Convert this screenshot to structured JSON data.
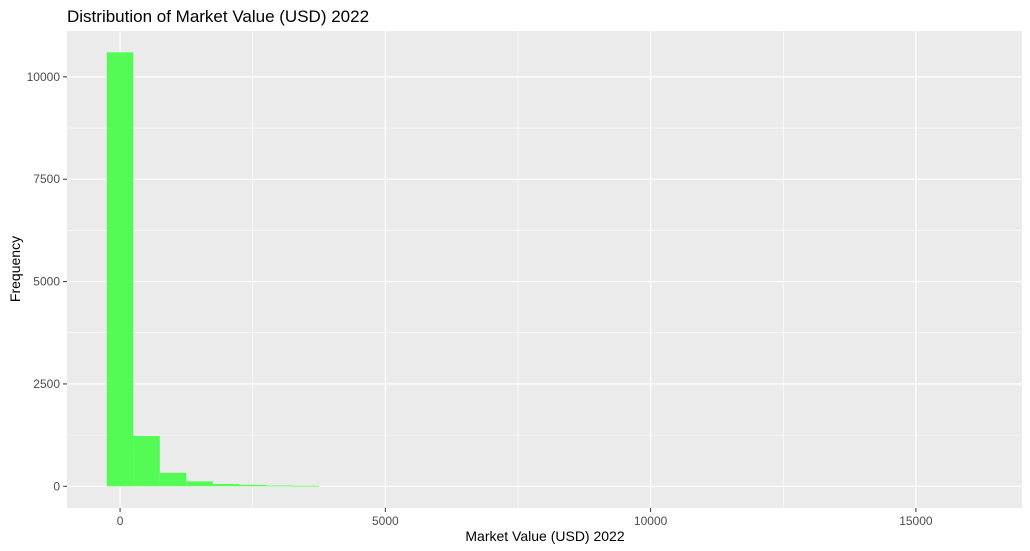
{
  "chart_data": {
    "type": "bar",
    "title": "Distribution of Market Value (USD) 2022",
    "xlabel": "Market Value (USD) 2022",
    "ylabel": "Frequency",
    "x_ticks": [
      0,
      5000,
      10000,
      15000
    ],
    "y_ticks": [
      0,
      2500,
      5000,
      7500,
      10000
    ],
    "xlim": [
      -1000,
      17000
    ],
    "ylim": [
      -530,
      11120
    ],
    "bin_width": 500,
    "bins": [
      {
        "start": -250,
        "end": 250,
        "count": 10600
      },
      {
        "start": 250,
        "end": 750,
        "count": 1230
      },
      {
        "start": 750,
        "end": 1250,
        "count": 330
      },
      {
        "start": 1250,
        "end": 1750,
        "count": 120
      },
      {
        "start": 1750,
        "end": 2250,
        "count": 55
      },
      {
        "start": 2250,
        "end": 2750,
        "count": 35
      },
      {
        "start": 2750,
        "end": 3250,
        "count": 18
      },
      {
        "start": 3250,
        "end": 3750,
        "count": 12
      }
    ],
    "bar_color": "#4CFC4C",
    "panel_background": "#EBEBEB",
    "grid_color": "#FFFFFF",
    "grid": true,
    "legend": "none"
  }
}
